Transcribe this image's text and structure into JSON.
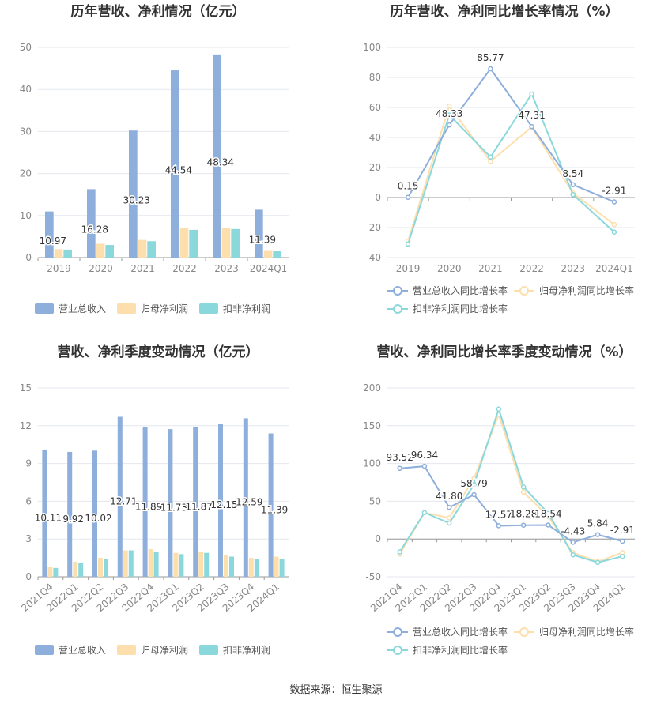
{
  "source_text": "数据来源：恒生聚源",
  "colors": {
    "revenue": "#8eaedc",
    "parent_np": "#fddfae",
    "deducted_np": "#8ad8dc",
    "revenue_line": "#8eaedc",
    "parent_line": "#fddfae",
    "deducted_line": "#8ad8dc",
    "grid": "#e4e7ee",
    "axis_text": "#888888",
    "title_text": "#333333"
  },
  "chart_data": [
    {
      "type": "bar",
      "title": "历年营收、净利情况（亿元）",
      "categories": [
        "2019",
        "2020",
        "2021",
        "2022",
        "2023",
        "2024Q1"
      ],
      "ylim": [
        0,
        50
      ],
      "yticks": [
        0,
        10,
        20,
        30,
        40,
        50
      ],
      "series": [
        {
          "name": "营业总收入",
          "values": [
            10.97,
            16.28,
            30.23,
            44.54,
            48.34,
            11.39
          ],
          "labels": [
            "10.97",
            "16.28",
            "30.23",
            "44.54",
            "48.34",
            "11.39"
          ]
        },
        {
          "name": "归母净利润",
          "values": [
            2.0,
            3.3,
            4.2,
            7.0,
            7.1,
            1.6
          ]
        },
        {
          "name": "扣非净利润",
          "values": [
            1.9,
            3.0,
            3.9,
            6.6,
            6.8,
            1.5
          ]
        }
      ],
      "legend": "bottom"
    },
    {
      "type": "line",
      "title": "历年营收、净利同比增长率情况（%）",
      "categories": [
        "2019",
        "2020",
        "2021",
        "2022",
        "2023",
        "2024Q1"
      ],
      "ylim": [
        -40,
        100
      ],
      "yticks": [
        -40,
        -20,
        0,
        20,
        40,
        60,
        80,
        100
      ],
      "series": [
        {
          "name": "营业总收入同比增长率",
          "values": [
            0.15,
            48.33,
            85.77,
            47.31,
            8.54,
            -2.91
          ],
          "labels": [
            "0.15",
            "48.33",
            "85.77",
            "47.31",
            "8.54",
            "-2.91"
          ]
        },
        {
          "name": "归母净利润同比增长率",
          "values": [
            -29,
            61,
            24,
            47,
            3,
            -18
          ]
        },
        {
          "name": "扣非净利润同比增长率",
          "values": [
            -31,
            55,
            27,
            69,
            2,
            -23
          ]
        }
      ],
      "legend": "bottom"
    },
    {
      "type": "bar",
      "title": "营收、净利季度变动情况（亿元）",
      "categories": [
        "2021Q4",
        "2022Q1",
        "2022Q2",
        "2022Q3",
        "2022Q4",
        "2023Q1",
        "2023Q2",
        "2023Q3",
        "2023Q4",
        "2024Q1"
      ],
      "ylim": [
        0,
        15
      ],
      "yticks": [
        0,
        3,
        6,
        9,
        12,
        15
      ],
      "series": [
        {
          "name": "营业总收入",
          "values": [
            10.11,
            9.92,
            10.02,
            12.71,
            11.89,
            11.73,
            11.87,
            12.15,
            12.59,
            11.39
          ],
          "labels": [
            "10.11",
            "9.92",
            "10.02",
            "12.71",
            "11.89",
            "11.73",
            "11.87",
            "12.15",
            "12.59",
            "11.39"
          ]
        },
        {
          "name": "归母净利润",
          "values": [
            0.8,
            1.2,
            1.5,
            2.1,
            2.2,
            1.9,
            2.0,
            1.7,
            1.5,
            1.6
          ]
        },
        {
          "name": "扣非净利润",
          "values": [
            0.7,
            1.1,
            1.4,
            2.1,
            2.0,
            1.8,
            1.9,
            1.6,
            1.4,
            1.4
          ]
        }
      ],
      "legend": "bottom"
    },
    {
      "type": "line",
      "title": "营收、净利同比增长率季度变动情况（%）",
      "categories": [
        "2021Q4",
        "2022Q1",
        "2022Q2",
        "2022Q3",
        "2022Q4",
        "2023Q1",
        "2023Q2",
        "2023Q3",
        "2023Q4",
        "2024Q1"
      ],
      "ylim": [
        -50,
        200
      ],
      "yticks": [
        -50,
        0,
        50,
        100,
        150,
        200
      ],
      "series": [
        {
          "name": "营业总收入同比增长率",
          "values": [
            93.52,
            96.34,
            41.8,
            58.79,
            17.57,
            18.28,
            18.54,
            -4.43,
            5.84,
            -2.91
          ],
          "labels": [
            "93.52",
            "96.34",
            "41.80",
            "58.79",
            "17.57",
            "18.28",
            "18.54",
            "-4.43",
            "5.84",
            "-2.91"
          ]
        },
        {
          "name": "归母净利润同比增长率",
          "values": [
            -20,
            35,
            28,
            80,
            165,
            62,
            30,
            -18,
            -30,
            -18
          ]
        },
        {
          "name": "扣非净利润同比增长率",
          "values": [
            -17,
            35,
            21,
            72,
            172,
            69,
            34,
            -21,
            -31,
            -23
          ]
        }
      ],
      "legend": "bottom"
    }
  ]
}
